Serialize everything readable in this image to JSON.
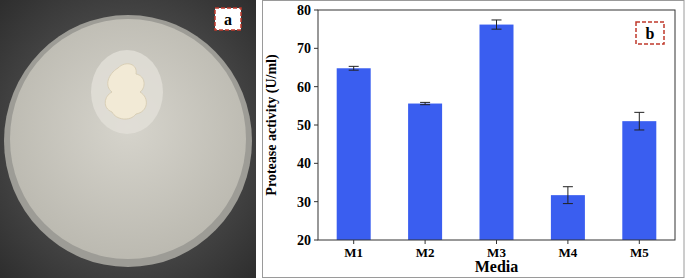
{
  "panel_labels": [
    "a",
    "b"
  ],
  "chart_data": {
    "type": "bar",
    "x_label": "Media",
    "y_label": "Protease activity (U/ml)",
    "categories": [
      "M1",
      "M2",
      "M3",
      "M4",
      "M5"
    ],
    "values": [
      64.8,
      55.6,
      76.2,
      31.7,
      51.0
    ],
    "errors": [
      0.5,
      0.3,
      1.2,
      2.2,
      2.3
    ],
    "color": "#3a5ef0",
    "ylim": [
      20,
      80
    ],
    "yticks": [
      20,
      30,
      40,
      50,
      60,
      70,
      80
    ],
    "grid": false
  }
}
